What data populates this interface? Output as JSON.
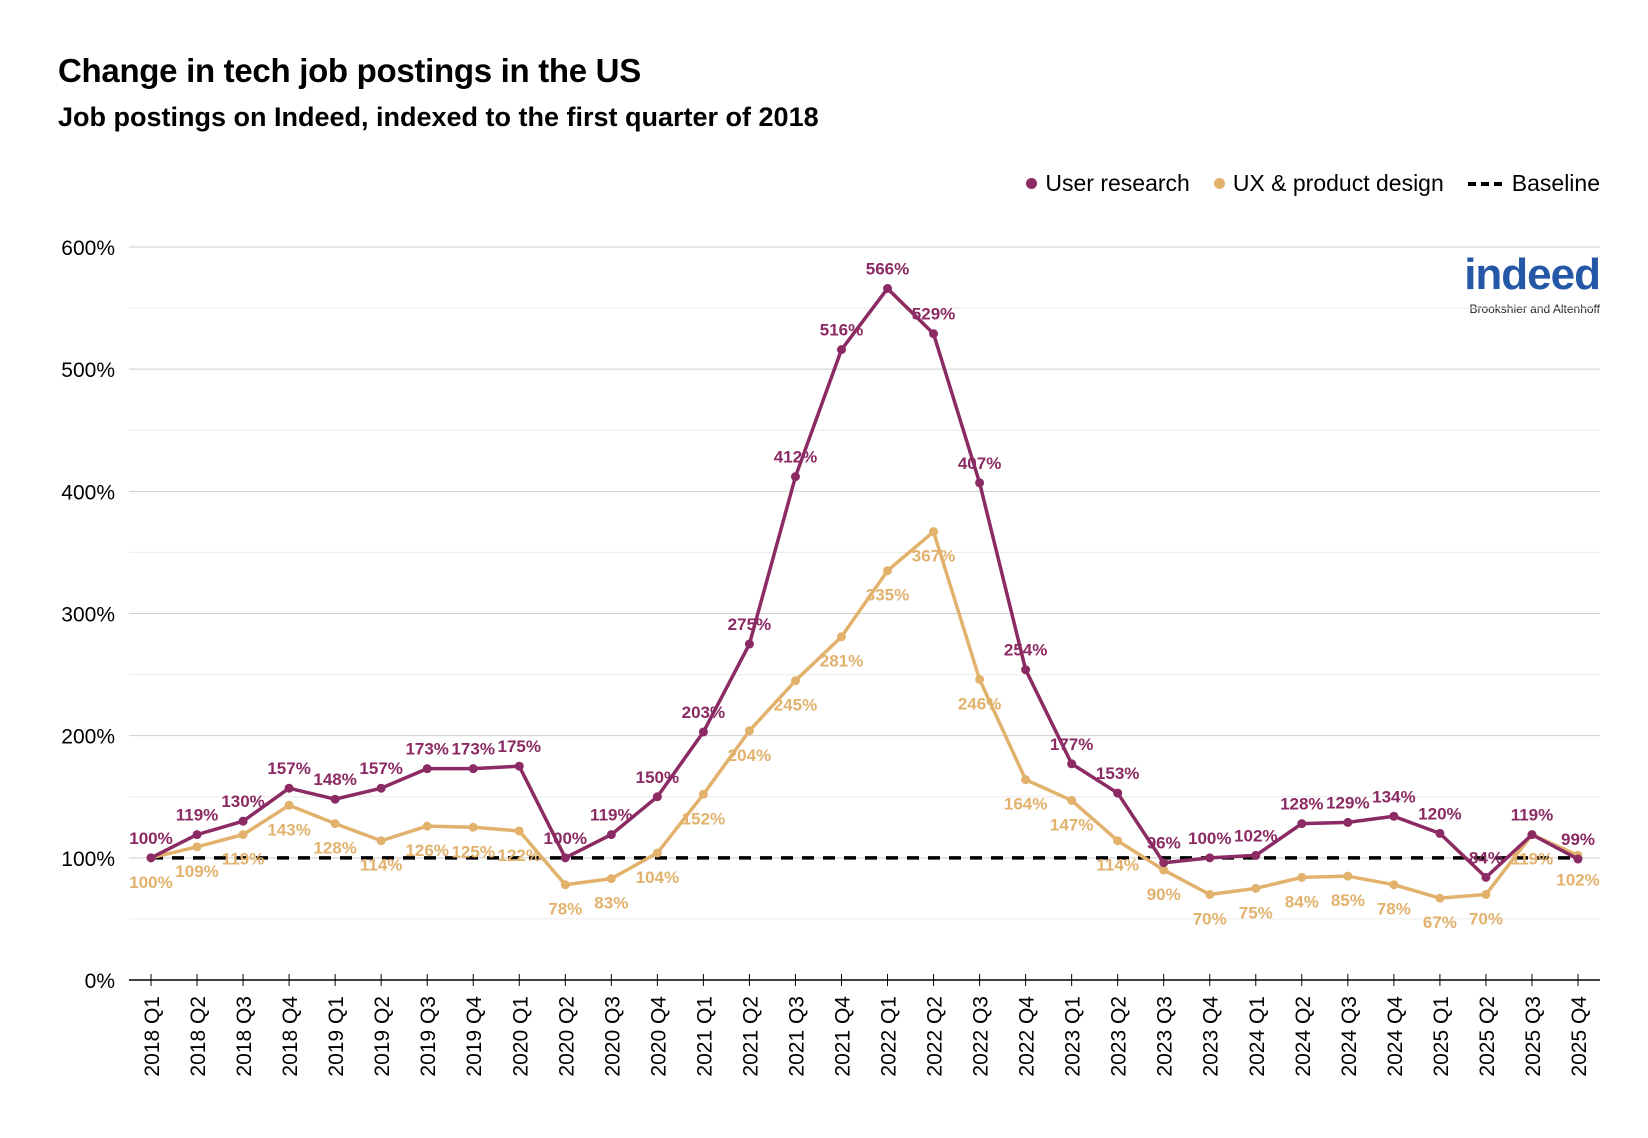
{
  "chart_data": {
    "type": "line",
    "title": "Change in tech job postings in the US",
    "subtitle": "Job postings on Indeed, indexed to the first quarter of 2018",
    "xlabel": "",
    "ylabel": "",
    "ylim": [
      0,
      600
    ],
    "yticks": [
      0,
      100,
      200,
      300,
      400,
      500,
      600
    ],
    "ytick_labels": [
      "0%",
      "100%",
      "200%",
      "300%",
      "400%",
      "500%",
      "600%"
    ],
    "grid": true,
    "legend_position": "top-right",
    "categories": [
      "2018 Q1",
      "2018 Q2",
      "2018 Q3",
      "2018 Q4",
      "2019 Q1",
      "2019 Q2",
      "2019 Q3",
      "2019 Q4",
      "2020 Q1",
      "2020 Q2",
      "2020 Q3",
      "2020 Q4",
      "2021 Q1",
      "2021 Q2",
      "2021 Q3",
      "2021 Q4",
      "2022 Q1",
      "2022 Q2",
      "2022 Q3",
      "2022 Q4",
      "2023 Q1",
      "2023 Q2",
      "2023 Q3",
      "2023 Q4",
      "2024 Q1",
      "2024 Q2",
      "2024 Q3",
      "2024 Q4",
      "2025 Q1",
      "2025 Q2",
      "2025 Q3",
      "2025 Q4"
    ],
    "series": [
      {
        "name": "User research",
        "color": "#8b2a63",
        "values": [
          100,
          119,
          130,
          157,
          148,
          157,
          173,
          173,
          175,
          100,
          119,
          150,
          203,
          275,
          412,
          516,
          566,
          529,
          407,
          254,
          177,
          153,
          96,
          100,
          102,
          128,
          129,
          134,
          120,
          84,
          119,
          99
        ]
      },
      {
        "name": "UX & product design",
        "color": "#e2b26d",
        "values": [
          100,
          109,
          119,
          143,
          128,
          114,
          126,
          125,
          122,
          78,
          83,
          104,
          152,
          204,
          245,
          281,
          335,
          367,
          246,
          164,
          147,
          114,
          90,
          70,
          75,
          84,
          85,
          78,
          67,
          70,
          119,
          102
        ]
      },
      {
        "name": "Baseline",
        "color": "#000000",
        "style": "dashed",
        "value": 100
      }
    ]
  },
  "logo": {
    "text": "indeed",
    "credit": "Brookshier and Altenhoff"
  }
}
